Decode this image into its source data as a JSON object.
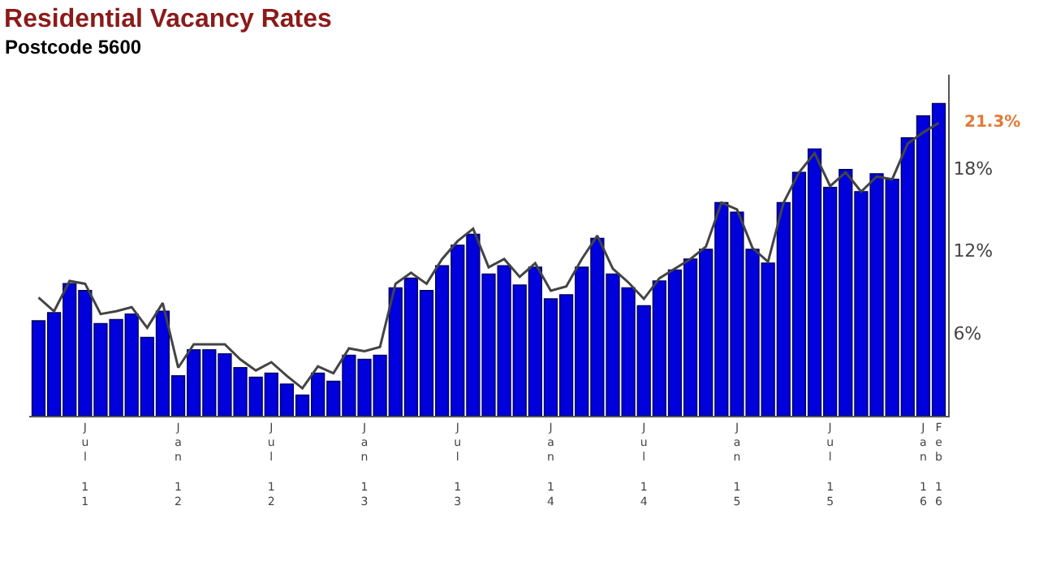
{
  "chart_data": {
    "type": "bar",
    "title": "Residential Vacancy Rates",
    "subtitle": "Postcode 5600",
    "categories": [
      null,
      null,
      null,
      "Jul 11",
      null,
      null,
      null,
      null,
      null,
      "Jan 12",
      null,
      null,
      null,
      null,
      null,
      "Jul 12",
      null,
      null,
      null,
      null,
      null,
      "Jan 13",
      null,
      null,
      null,
      null,
      null,
      "Jul 13",
      null,
      null,
      null,
      null,
      null,
      "Jan 14",
      null,
      null,
      null,
      null,
      null,
      "Jul 14",
      null,
      null,
      null,
      null,
      null,
      "Jan 15",
      null,
      null,
      null,
      null,
      null,
      "Jul 15",
      null,
      null,
      null,
      null,
      null,
      "Jan 16",
      "Feb 16"
    ],
    "series": [
      {
        "color": "#0000dd",
        "values": [
          6.9,
          7.5,
          9.6,
          9.1,
          6.7,
          7.0,
          7.4,
          5.7,
          7.6,
          2.9,
          4.8,
          4.8,
          4.5,
          3.5,
          2.8,
          3.1,
          2.3,
          1.5,
          3.1,
          2.5,
          4.4,
          4.1,
          4.4,
          9.3,
          10.0,
          9.1,
          10.9,
          12.4,
          13.2,
          10.3,
          10.9,
          9.5,
          10.8,
          8.5,
          8.8,
          10.8,
          12.9,
          10.3,
          9.3,
          8.0,
          9.8,
          10.6,
          11.4,
          12.1,
          15.5,
          14.8,
          12.1,
          11.1,
          15.5,
          17.7,
          19.4,
          16.6,
          17.9,
          16.3,
          17.6,
          17.2,
          20.2,
          21.8,
          22.7
        ]
      },
      {
        "type": "line",
        "color": "#444444",
        "values": [
          8.6,
          7.6,
          9.8,
          9.6,
          7.4,
          7.6,
          7.9,
          6.4,
          8.2,
          3.5,
          5.2,
          5.2,
          5.2,
          4.1,
          3.3,
          3.9,
          2.9,
          2.0,
          3.6,
          3.1,
          4.9,
          4.7,
          5.0,
          9.6,
          10.4,
          9.6,
          11.4,
          12.7,
          13.6,
          10.8,
          11.4,
          10.1,
          11.1,
          9.1,
          9.4,
          11.4,
          13.1,
          10.7,
          9.7,
          8.5,
          10.0,
          10.7,
          11.4,
          12.3,
          15.5,
          15.0,
          12.2,
          11.2,
          15.5,
          17.7,
          19.1,
          16.7,
          17.7,
          16.3,
          17.4,
          17.2,
          19.8,
          20.6,
          21.3
        ]
      }
    ],
    "ylim": [
      0,
      24.8
    ],
    "yticks": [
      {
        "value": 6,
        "label": "6%"
      },
      {
        "value": 12,
        "label": "12%"
      },
      {
        "value": 18,
        "label": "18%"
      }
    ],
    "annotations": [
      {
        "text": "21.3%",
        "x": "Feb 16",
        "y": 21.3
      }
    ],
    "marker": "none",
    "line_style": "solid"
  }
}
